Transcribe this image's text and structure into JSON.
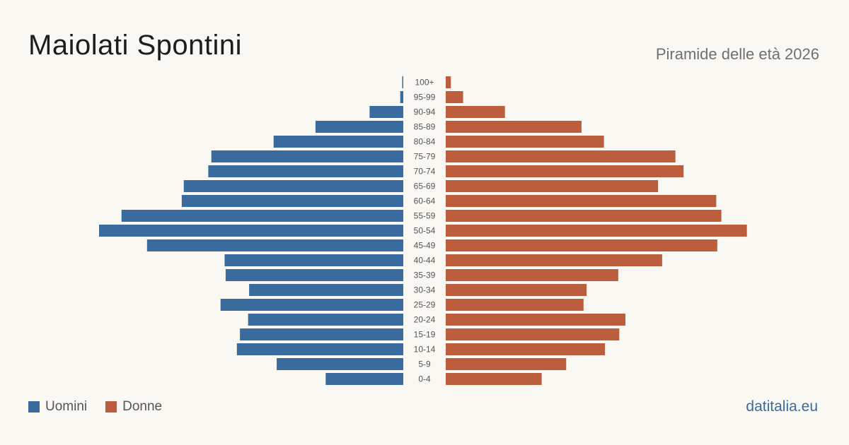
{
  "header": {
    "title": "Maiolati Spontini",
    "subtitle": "Piramide delle età 2026"
  },
  "legend": {
    "men_label": "Uomini",
    "women_label": "Donne"
  },
  "brand": "datitalia.eu",
  "colors": {
    "men": "#3a6b9e",
    "women": "#bb5e3e",
    "background": "#faf8f3"
  },
  "chart_data": {
    "type": "bar",
    "orientation": "horizontal-pyramid",
    "categories": [
      "100+",
      "95-99",
      "90-94",
      "85-89",
      "80-84",
      "75-79",
      "70-74",
      "65-69",
      "60-64",
      "55-59",
      "50-54",
      "45-49",
      "40-44",
      "35-39",
      "30-34",
      "25-29",
      "20-24",
      "15-19",
      "10-14",
      "5-9",
      "0-4"
    ],
    "series": [
      {
        "name": "Uomini",
        "values": [
          1,
          3,
          33,
          86,
          127,
          188,
          191,
          215,
          217,
          276,
          298,
          251,
          175,
          174,
          151,
          179,
          152,
          160,
          163,
          124,
          76
        ]
      },
      {
        "name": "Donne",
        "values": [
          5,
          17,
          58,
          133,
          155,
          225,
          233,
          208,
          265,
          270,
          295,
          266,
          212,
          169,
          138,
          135,
          176,
          170,
          156,
          118,
          94
        ]
      }
    ],
    "max_value": 298,
    "grid": false,
    "legend_position": "bottom-left"
  }
}
